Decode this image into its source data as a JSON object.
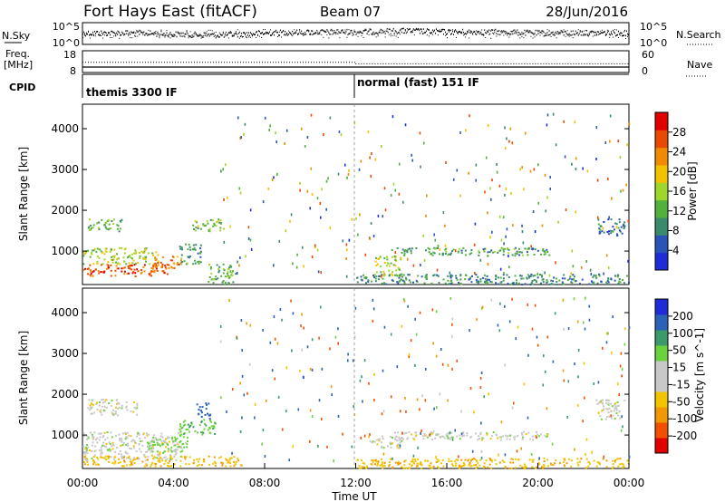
{
  "header": {
    "station": "Fort Hays East (fitACF)",
    "beam": "Beam 07",
    "date": "28/Jun/2016"
  },
  "left_labels": {
    "nsky": "N.Sky",
    "freq_line1": "Freq.",
    "freq_line2": "[MHz]",
    "cpid": "CPID"
  },
  "right_labels": {
    "nsearch": "N.Search",
    "nave": "Nave"
  },
  "cpid_segments": [
    {
      "label": "themis 3300 IF",
      "start_hour": 0
    },
    {
      "label": "normal (fast) 151 IF",
      "start_hour": 12
    }
  ],
  "axis": {
    "xlabel": "Time UT",
    "ylabel": "Slant Range [km]",
    "xticks": [
      "00:00",
      "04:00",
      "08:00",
      "12:00",
      "16:00",
      "20:00",
      "00:00"
    ],
    "yticks": [
      "1000",
      "2000",
      "3000",
      "4000"
    ]
  },
  "colors": {
    "power": [
      "#1e2bd6",
      "#2a55b8",
      "#3a8a6e",
      "#52b03c",
      "#9fd62a",
      "#f2c200",
      "#f28a00",
      "#e84a00",
      "#e00000"
    ],
    "velocity": [
      "#e00000",
      "#f25000",
      "#f29800",
      "#f2c400",
      "#c8c8c8",
      "#c8c8c8",
      "#6ad23c",
      "#3a9a6a",
      "#2a62b8",
      "#1e2bd6"
    ]
  },
  "chart_data": [
    {
      "type": "line",
      "name": "N.Sky / N.Search",
      "x_unit": "hours UT",
      "xlim": [
        0,
        24
      ],
      "left_axis_ticks": [
        "10^5",
        "10^0"
      ],
      "right_axis_ticks": [
        "10^5",
        "10^0"
      ],
      "series": [
        {
          "name": "N.Sky",
          "style": "solid",
          "x": [
            0,
            2,
            4,
            6,
            8,
            10,
            12,
            14,
            16,
            18,
            20,
            22,
            24
          ],
          "level": [
            0.55,
            0.55,
            0.5,
            0.45,
            0.55,
            0.6,
            0.6,
            0.65,
            0.6,
            0.6,
            0.55,
            0.55,
            0.55
          ]
        },
        {
          "name": "N.Search",
          "style": "dotted",
          "x": [
            0,
            2,
            4,
            6,
            8,
            10,
            12,
            14,
            16,
            18,
            20,
            22,
            24
          ],
          "level": [
            0.5,
            0.5,
            0.5,
            0.5,
            0.5,
            0.5,
            0.5,
            0.55,
            0.5,
            0.5,
            0.5,
            0.5,
            0.5
          ]
        }
      ]
    },
    {
      "type": "line",
      "name": "Freq / Nave",
      "xlim": [
        0,
        24
      ],
      "left_axis_ticks": [
        "18",
        "8"
      ],
      "right_axis_ticks": [
        "60",
        "0"
      ],
      "series": [
        {
          "name": "Freq",
          "style": "solid",
          "x": [
            0,
            24
          ],
          "y": [
            10.5,
            10.5
          ]
        },
        {
          "name": "Nave",
          "style": "dotted",
          "x": [
            0,
            12,
            12,
            24
          ],
          "y": [
            28,
            28,
            24,
            24
          ]
        }
      ]
    },
    {
      "type": "heatmap",
      "name": "Power",
      "xlabel": "Time UT",
      "ylabel": "Slant Range [km]",
      "xlim": [
        0,
        24
      ],
      "ylim": [
        180,
        4600
      ],
      "colorbar_label": "Power [dB]",
      "colorbar_ticks": [
        "4",
        "8",
        "12",
        "16",
        "20",
        "24",
        "28"
      ],
      "zlim": [
        0,
        32
      ],
      "scatter_regions": [
        {
          "t": [
            0,
            3.8
          ],
          "r": [
            400,
            700
          ],
          "level": 28
        },
        {
          "t": [
            0,
            3.3
          ],
          "r": [
            700,
            1100
          ],
          "level": 16
        },
        {
          "t": [
            3.0,
            4.3
          ],
          "r": [
            600,
            900
          ],
          "level": 26
        },
        {
          "t": [
            4.2,
            5.2
          ],
          "r": [
            700,
            1200
          ],
          "level": 10
        },
        {
          "t": [
            0.2,
            1.8
          ],
          "r": [
            1500,
            1800
          ],
          "level": 12
        },
        {
          "t": [
            4.8,
            6.2
          ],
          "r": [
            1500,
            1800
          ],
          "level": 14
        },
        {
          "t": [
            5.5,
            6.7
          ],
          "r": [
            200,
            700
          ],
          "level": 12
        },
        {
          "t": [
            12.8,
            14.0
          ],
          "r": [
            400,
            900
          ],
          "level": 16
        },
        {
          "t": [
            13.5,
            20.5
          ],
          "r": [
            900,
            1100
          ],
          "level": 10
        },
        {
          "t": [
            12.0,
            24.0
          ],
          "r": [
            200,
            450
          ],
          "level": 8
        },
        {
          "t": [
            22.5,
            23.8
          ],
          "r": [
            1400,
            1800
          ],
          "level": 6
        }
      ]
    },
    {
      "type": "heatmap",
      "name": "Velocity",
      "xlabel": "Time UT",
      "ylabel": "Slant Range [km]",
      "xlim": [
        0,
        24
      ],
      "ylim": [
        180,
        4600
      ],
      "colorbar_label": "Velocity [m s^-1]",
      "colorbar_ticks": [
        "-200",
        "-100",
        "-50",
        "-15",
        "15",
        "50",
        "100",
        "200"
      ],
      "zlim": [
        -250,
        250
      ],
      "scatter_regions": [
        {
          "t": [
            0,
            4.3
          ],
          "r": [
            400,
            1100
          ],
          "level": 0
        },
        {
          "t": [
            2.8,
            4.6
          ],
          "r": [
            600,
            1000
          ],
          "level": 30
        },
        {
          "t": [
            4.2,
            5.8
          ],
          "r": [
            1000,
            1400
          ],
          "level": 40
        },
        {
          "t": [
            5.0,
            5.6
          ],
          "r": [
            1400,
            1800
          ],
          "level": 160
        },
        {
          "t": [
            0.2,
            2.4
          ],
          "r": [
            1500,
            1900
          ],
          "level": 0
        },
        {
          "t": [
            0,
            7.0
          ],
          "r": [
            250,
            500
          ],
          "level": -40
        },
        {
          "t": [
            12.5,
            14.0
          ],
          "r": [
            700,
            1000
          ],
          "level": 0
        },
        {
          "t": [
            13.5,
            20.5
          ],
          "r": [
            900,
            1100
          ],
          "level": 0
        },
        {
          "t": [
            12.0,
            24.0
          ],
          "r": [
            200,
            450
          ],
          "level": -40
        },
        {
          "t": [
            22.5,
            23.8
          ],
          "r": [
            1400,
            1900
          ],
          "level": 0
        }
      ]
    }
  ]
}
